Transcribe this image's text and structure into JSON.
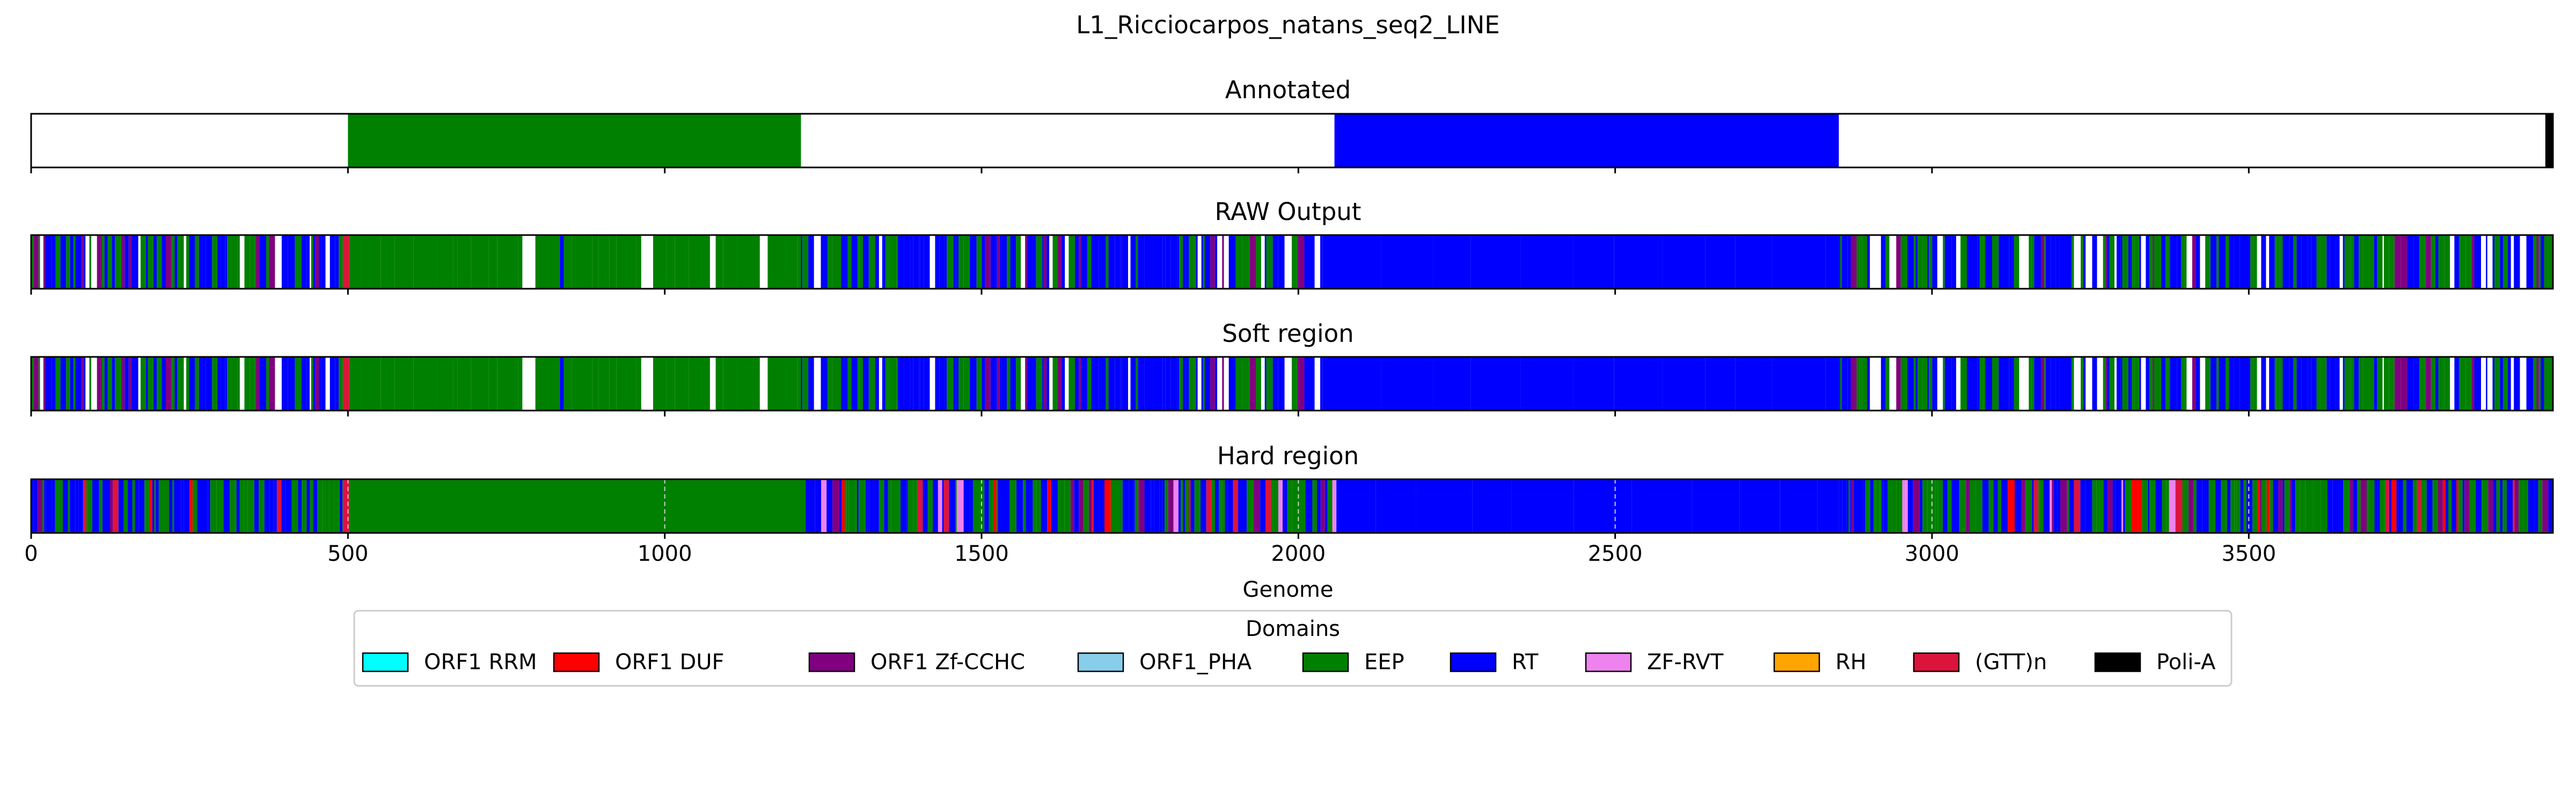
{
  "chart_data": {
    "type": "bar",
    "title": "L1_Ricciocarpos_natans_seq2_LINE",
    "xlabel": "Genome",
    "xlim": [
      0,
      3980
    ],
    "xticks": [
      0,
      500,
      1000,
      1500,
      2000,
      2500,
      3000,
      3500
    ],
    "tick_labels": [
      "0",
      "500",
      "1000",
      "1500",
      "2000",
      "2500",
      "3000",
      "3500"
    ],
    "panels": [
      {
        "key": "annotated",
        "title": "Annotated",
        "segments": [
          {
            "start": 500,
            "end": 1215,
            "domain": "EEP"
          },
          {
            "start": 2057,
            "end": 2853,
            "domain": "RT"
          },
          {
            "start": 3968,
            "end": 3980,
            "domain": "Poli-A"
          }
        ]
      },
      {
        "key": "raw",
        "title": "RAW Output",
        "mode": "noisy",
        "seed": 7,
        "gap_prob": 0.12,
        "blocks": [
          {
            "start": 0,
            "end": 492,
            "main": "RT"
          },
          {
            "start": 492,
            "end": 502,
            "main": "(GTT)n"
          },
          {
            "start": 502,
            "end": 1215,
            "main": "EEP"
          },
          {
            "start": 1215,
            "end": 2038,
            "main": "RT"
          },
          {
            "start": 2038,
            "end": 2853,
            "main": "RT-solid"
          },
          {
            "start": 2853,
            "end": 3980,
            "main": "RT"
          }
        ]
      },
      {
        "key": "soft",
        "title": "Soft region",
        "mode": "noisy",
        "seed": 7,
        "gap_prob": 0.12,
        "blocks": [
          {
            "start": 0,
            "end": 492,
            "main": "RT"
          },
          {
            "start": 492,
            "end": 502,
            "main": "(GTT)n"
          },
          {
            "start": 502,
            "end": 1215,
            "main": "EEP"
          },
          {
            "start": 1215,
            "end": 2038,
            "main": "RT"
          },
          {
            "start": 2038,
            "end": 2853,
            "main": "RT-solid"
          },
          {
            "start": 2853,
            "end": 3980,
            "main": "RT"
          }
        ]
      },
      {
        "key": "hard",
        "title": "Hard region",
        "mode": "noisy",
        "seed": 11,
        "gap_prob": 0,
        "blocks": [
          {
            "start": 0,
            "end": 492,
            "main": "RT"
          },
          {
            "start": 492,
            "end": 502,
            "main": "(GTT)n"
          },
          {
            "start": 502,
            "end": 1222,
            "main": "EEP-solid"
          },
          {
            "start": 1222,
            "end": 2060,
            "main": "RT"
          },
          {
            "start": 2060,
            "end": 2853,
            "main": "RT-solid"
          },
          {
            "start": 2853,
            "end": 3980,
            "main": "RT"
          }
        ]
      }
    ],
    "legend": {
      "title": "Domains",
      "placement": "bottom-center",
      "items": [
        {
          "label": "ORF1 RRM",
          "color": "#00ffff"
        },
        {
          "label": "ORF1 DUF",
          "color": "#ff0000"
        },
        {
          "label": "ORF1 Zf-CCHC",
          "color": "#800080"
        },
        {
          "label": "ORF1_PHA",
          "color": "#87ceeb"
        },
        {
          "label": "EEP",
          "color": "#008000"
        },
        {
          "label": "RT",
          "color": "#0000ff"
        },
        {
          "label": "ZF-RVT",
          "color": "#ee82ee"
        },
        {
          "label": "RH",
          "color": "#ffa500"
        },
        {
          "label": "(GTT)n",
          "color": "#dc143c"
        },
        {
          "label": "Poli-A",
          "color": "#000000"
        }
      ]
    }
  }
}
